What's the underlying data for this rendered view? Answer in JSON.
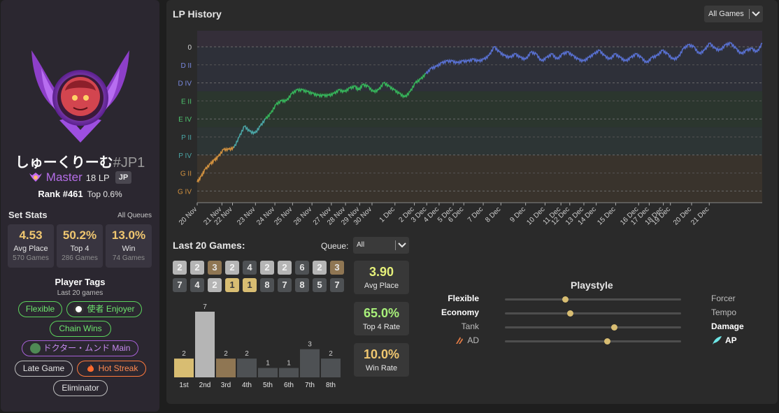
{
  "profile": {
    "name": "しゅーくりーむ",
    "tag": "#JP1",
    "tier": "Master",
    "lp": "18 LP",
    "region": "JP",
    "rank": "Rank #461",
    "top_percent": "Top 0.6%"
  },
  "set_stats": {
    "title": "Set Stats",
    "queue": "All Queues",
    "stats": [
      {
        "value": "4.53",
        "label": "Avg Place",
        "sub": "570 Games"
      },
      {
        "value": "50.2%",
        "label": "Top 4",
        "sub": "286 Games"
      },
      {
        "value": "13.0%",
        "label": "Win",
        "sub": "74 Games"
      }
    ]
  },
  "player_tags": {
    "title": "Player Tags",
    "subtitle": "Last 20 games",
    "tags": [
      {
        "label": "Flexible",
        "style": "green"
      },
      {
        "label": "使者 Enjoyer",
        "style": "green",
        "icon": "emblem-icon"
      },
      {
        "label": "Chain Wins",
        "style": "green"
      },
      {
        "label": "ドクター・ムンド Main",
        "style": "purple",
        "icon": "champion-icon"
      },
      {
        "label": "Late Game",
        "style": "white"
      },
      {
        "label": "Hot Streak",
        "style": "orange",
        "icon": "fire-icon"
      },
      {
        "label": "Eliminator",
        "style": "white"
      }
    ]
  },
  "lp_history": {
    "title": "LP History",
    "filter": "All Games"
  },
  "chart_data": {
    "type": "line",
    "y_tick_labels": [
      "0",
      "D II",
      "D IV",
      "E II",
      "E IV",
      "P II",
      "P IV",
      "G II",
      "G IV"
    ],
    "x_tick_labels": [
      "20 Nov",
      "21 Nov",
      "22 Nov",
      "23 Nov",
      "24 Nov",
      "25 Nov",
      "26 Nov",
      "27 Nov",
      "28 Nov",
      "29 Nov",
      "30 Nov",
      "1 Dec",
      "2 Dec",
      "3 Dec",
      "4 Dec",
      "5 Dec",
      "6 Dec",
      "7 Dec",
      "8 Dec",
      "9 Dec",
      "10 Dec",
      "11 Dec",
      "12 Dec",
      "13 Dec",
      "14 Dec",
      "15 Dec",
      "16 Dec",
      "17 Dec",
      "18 Dec",
      "19 Dec",
      "20 Dec",
      "21 Dec"
    ],
    "tiers": [
      {
        "name": "Gold",
        "color": "#d0903f"
      },
      {
        "name": "Platinum",
        "color": "#4aa5a5"
      },
      {
        "name": "Emerald",
        "color": "#36b45a"
      },
      {
        "name": "Diamond",
        "color": "#5870d0"
      },
      {
        "name": "Master",
        "color": "#9c5cd8"
      }
    ],
    "series": [
      {
        "x": [
          0,
          0.3,
          0.6,
          1.0,
          1.3,
          1.6,
          2.0,
          2.4,
          2.8,
          3.2,
          3.6,
          4.0,
          4.4,
          4.8,
          5.2,
          5.6,
          6.0,
          6.4,
          6.8,
          7.2,
          7.6,
          8.0,
          8.4,
          8.8,
          9.2,
          9.6,
          10.0,
          10.4,
          10.8,
          11.2,
          11.6,
          12.0,
          12.3,
          12.6,
          13.0,
          13.4,
          13.8,
          14.2,
          14.6,
          15.0,
          15.4,
          15.8,
          16.2,
          16.6,
          17.0,
          17.4,
          17.8,
          18.2,
          18.6,
          19.0,
          19.4,
          19.8,
          20.2,
          20.6,
          21.0,
          21.4,
          21.8,
          22.2,
          22.6,
          23.0,
          23.4,
          23.8,
          24.2,
          24.6,
          25.0,
          25.4,
          25.8,
          26.2,
          26.6,
          27.0,
          27.4,
          27.8,
          28.2,
          28.6,
          29.0,
          29.4,
          29.8,
          30.2,
          30.6,
          31.0,
          31.4,
          31.8,
          32.2,
          32.6,
          33.0,
          33.4,
          33.8,
          34.2,
          34.6,
          35.0,
          35.4,
          35.8,
          36.2,
          36.6,
          37.0,
          37.4,
          37.8,
          38.2,
          38.6,
          39.0,
          39.4,
          39.8,
          40.2,
          40.6,
          41.0,
          41.4,
          41.8,
          42.2,
          42.6,
          43.0
        ],
        "y": [
          0.5,
          0.8,
          1.2,
          1.5,
          1.7,
          1.9,
          2.3,
          2.3,
          2.4,
          3.0,
          3.6,
          3.3,
          3.2,
          3.6,
          4.0,
          4.3,
          4.8,
          5.0,
          5.0,
          5.4,
          5.6,
          5.6,
          5.5,
          5.4,
          5.3,
          5.3,
          5.3,
          5.4,
          5.6,
          5.5,
          5.7,
          5.8,
          5.6,
          5.9,
          5.8,
          5.5,
          5.6,
          6.0,
          5.8,
          5.6,
          5.4,
          5.2,
          5.5,
          6.0,
          6.2,
          6.5,
          6.8,
          6.9,
          7.1,
          7.2,
          7.2,
          7.1,
          7.2,
          7.2,
          7.3,
          7.2,
          7.3,
          7.5,
          8.0,
          7.7,
          7.5,
          7.4,
          7.6,
          7.4,
          7.3,
          7.7,
          7.6,
          7.2,
          7.4,
          7.6,
          7.3,
          7.6,
          7.7,
          7.5,
          7.3,
          7.2,
          7.4,
          7.6,
          7.8,
          7.5,
          7.3,
          7.6,
          7.4,
          7.2,
          7.4,
          7.6,
          7.4,
          7.1,
          7.4,
          7.5,
          7.8,
          7.6,
          7.3,
          7.4,
          7.9,
          8.1,
          8.0,
          7.6,
          7.8,
          8.2,
          7.9,
          7.8,
          8.1,
          8.2,
          7.9,
          7.6,
          7.8,
          7.9,
          7.7,
          8.2
        ]
      }
    ],
    "y_scale": "tier divisions, 0 = Master 0 LP at top"
  },
  "last20": {
    "title": "Last 20 Games:",
    "queue_label": "Queue:",
    "queue_value": "All",
    "placements": [
      2,
      2,
      3,
      2,
      4,
      2,
      2,
      6,
      2,
      3,
      7,
      4,
      2,
      1,
      1,
      8,
      7,
      8,
      5,
      7
    ],
    "histogram": {
      "categories": [
        "1st",
        "2nd",
        "3rd",
        "4th",
        "5th",
        "6th",
        "7th",
        "8th"
      ],
      "values": [
        2,
        7,
        2,
        2,
        1,
        1,
        3,
        2
      ]
    },
    "summary": [
      {
        "value": "3.90",
        "label": "Avg Place",
        "color": "#e5f07a"
      },
      {
        "value": "65.0%",
        "label": "Top 4 Rate",
        "color": "#a8f07a"
      },
      {
        "value": "10.0%",
        "label": "Win Rate",
        "color": "#f0c770"
      }
    ]
  },
  "playstyle": {
    "title": "Playstyle",
    "rows": [
      {
        "left": "Flexible",
        "right": "Forcer",
        "value": 0.34,
        "bold": "left"
      },
      {
        "left": "Economy",
        "right": "Tempo",
        "value": 0.37,
        "bold": "left"
      },
      {
        "left": "Tank",
        "right": "Damage",
        "value": 0.62,
        "bold": "right"
      },
      {
        "left": "AD",
        "right": "AP",
        "value": 0.58,
        "bold": "right",
        "left_icon": "claw-icon",
        "right_icon": "feather-icon"
      }
    ]
  },
  "colors": {
    "place_1": "#d8bd72",
    "place_2": "#b5b5b5",
    "place_3": "#8f7653",
    "place_other": "#4e5154"
  }
}
